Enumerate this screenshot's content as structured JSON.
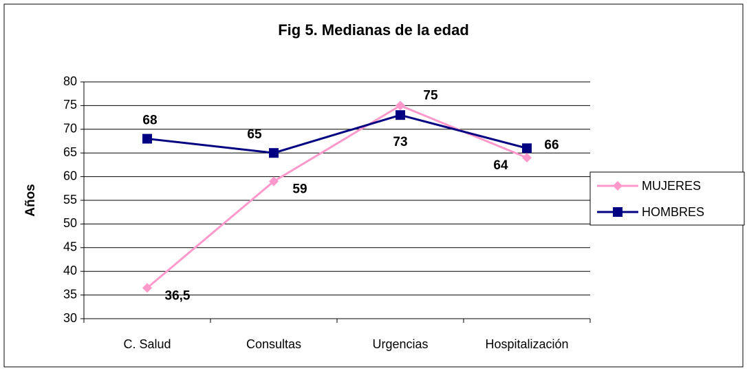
{
  "chart_data": {
    "type": "line",
    "title": "Fig 5. Medianas de la edad",
    "y_label": "Años",
    "categories": [
      "C. Salud",
      "Consultas",
      "Urgencias",
      "Hospitalización"
    ],
    "series": [
      {
        "name": "MUJERES",
        "color": "#ff99cc",
        "marker": "diamond",
        "values": [
          36.5,
          59,
          75,
          64
        ],
        "value_labels": [
          "36,5",
          "59",
          "75",
          "64"
        ]
      },
      {
        "name": "HOMBRES",
        "color": "#000080",
        "marker": "square",
        "values": [
          68,
          65,
          73,
          66
        ]
      }
    ],
    "ylim": [
      30,
      80
    ],
    "yticks": [
      30,
      35,
      40,
      45,
      50,
      55,
      60,
      65,
      70,
      75,
      80
    ],
    "grid": true,
    "legend": "right"
  }
}
